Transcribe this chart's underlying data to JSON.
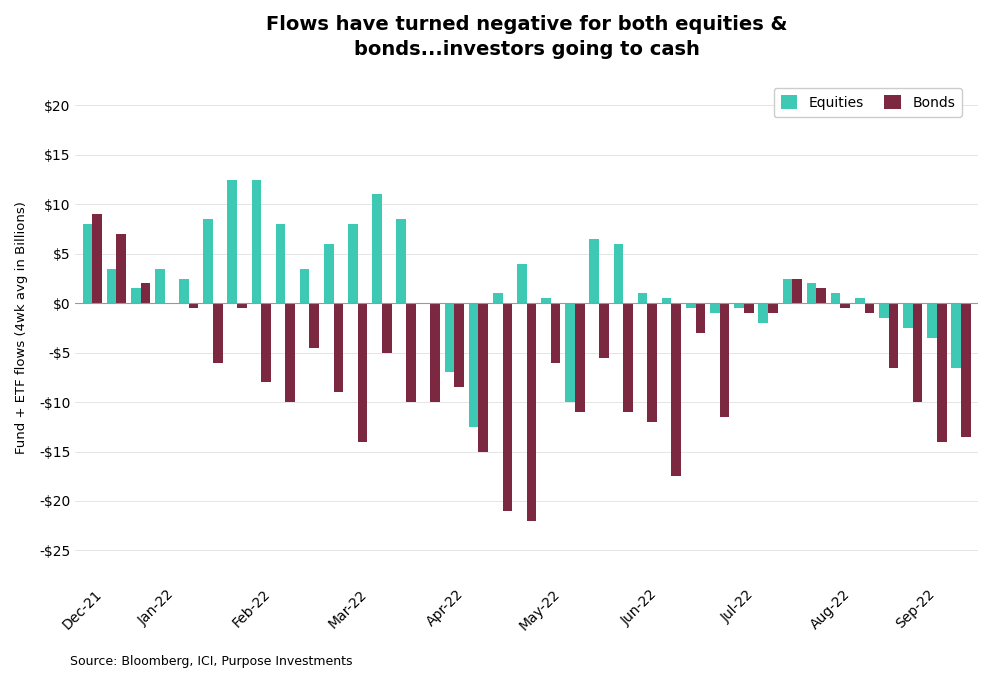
{
  "title": "Flows have turned negative for both equities &\nbonds...investors going to cash",
  "ylabel": "Fund + ETF flows (4wk avg in Billions)",
  "source": "Source: Bloomberg, ICI, Purpose Investments",
  "equity_color": "#3EC9B5",
  "bond_color": "#7B2840",
  "ylim": [
    -28,
    23
  ],
  "yticks": [
    -25,
    -20,
    -15,
    -10,
    -5,
    0,
    5,
    10,
    15,
    20
  ],
  "x_labels": [
    "Dec-21",
    "Jan-22",
    "Feb-22",
    "Mar-22",
    "Apr-22",
    "May-22",
    "Jun-22",
    "Jul-22",
    "Aug-22",
    "Sep-22"
  ],
  "weeks_equities": [
    8.0,
    3.5,
    1.5,
    3.5,
    2.5,
    8.5,
    12.5,
    12.5,
    8.0,
    3.5,
    6.0,
    8.0,
    11.0,
    8.5,
    0.0,
    -7.0,
    -12.5,
    1.0,
    4.0,
    0.5,
    -10.0,
    6.5,
    6.0,
    1.0,
    0.5,
    -0.5,
    -1.0,
    -0.5,
    -2.0,
    2.5,
    2.0,
    1.0,
    0.5,
    -1.5,
    -2.5,
    -3.5,
    -6.5
  ],
  "weeks_bonds": [
    9.0,
    7.0,
    2.0,
    0.0,
    -0.5,
    -6.0,
    -0.5,
    -8.0,
    -10.0,
    -4.5,
    -9.0,
    -14.0,
    -5.0,
    -10.0,
    -10.0,
    -8.5,
    -15.0,
    -21.0,
    -22.0,
    -6.0,
    -11.0,
    -5.5,
    -11.0,
    -12.0,
    -17.5,
    -3.0,
    -11.5,
    -1.0,
    -1.0,
    2.5,
    1.5,
    -0.5,
    -1.0,
    -6.5,
    -10.0,
    -14.0,
    -13.5
  ],
  "month_counts": [
    2,
    4,
    4,
    4,
    4,
    4,
    4,
    4,
    4,
    3
  ]
}
